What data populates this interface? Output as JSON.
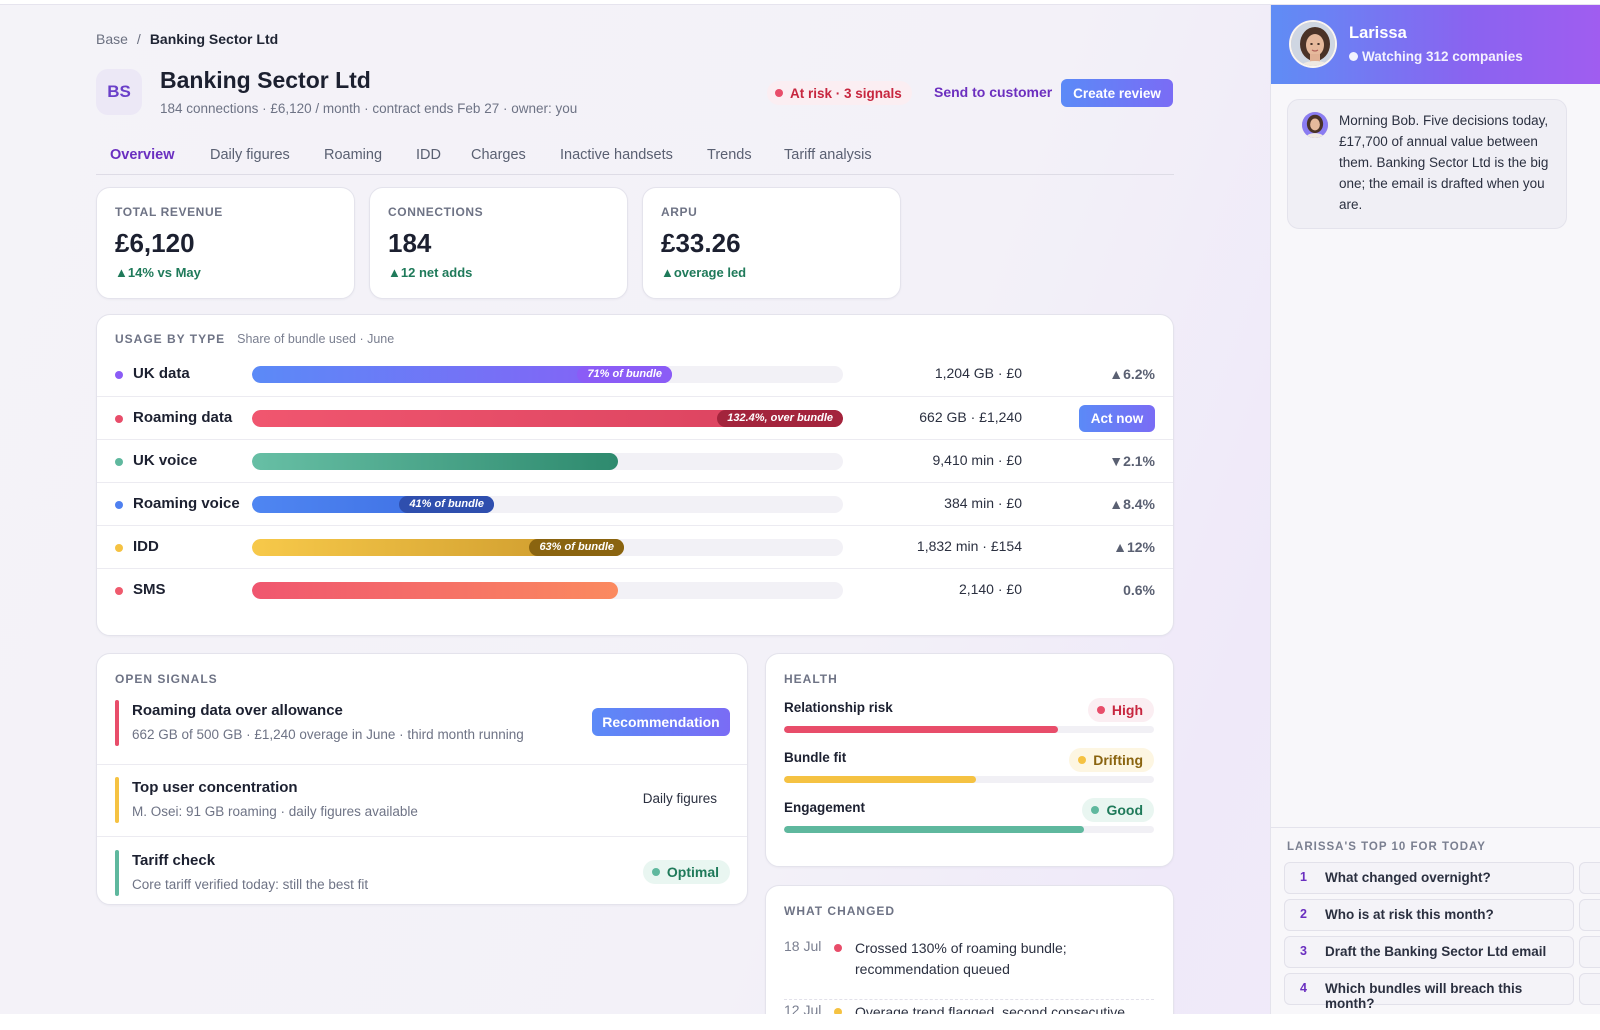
{
  "breadcrumb": {
    "root": "Base",
    "separator": "/",
    "current": "Banking Sector Ltd"
  },
  "company": {
    "initials": "BS",
    "name": "Banking Sector Ltd",
    "subtitle": "184 connections · £6,120 / month · contract ends Feb 27 · owner: you",
    "risk_label": "At risk · 3 signals",
    "send_label": "Send to customer",
    "create_label": "Create review"
  },
  "tabs": [
    "Overview",
    "Daily figures",
    "Roaming",
    "IDD",
    "Charges",
    "Inactive handsets",
    "Trends",
    "Tariff analysis"
  ],
  "active_tab": "Overview",
  "stats": [
    {
      "label": "TOTAL REVENUE",
      "value": "£6,120",
      "delta": "▲14% vs May"
    },
    {
      "label": "CONNECTIONS",
      "value": "184",
      "delta": "▲12 net adds"
    },
    {
      "label": "ARPU",
      "value": "£33.26",
      "delta": "▲overage led"
    }
  ],
  "usage": {
    "title": "USAGE BY TYPE",
    "subtitle": "Share of bundle used · June",
    "rows": [
      {
        "name": "UK data",
        "dot": "#8b5cf6",
        "fill": 0.71,
        "tag": "71% of bundle",
        "amount": "1,204 GB · £0",
        "delta": "▲6.2%",
        "gradient": [
          "#5b8af7",
          "#8b5cf6"
        ],
        "tag_color": "#8b5cf6"
      },
      {
        "name": "Roaming data",
        "dot": "#e84d6a",
        "fill": 1.0,
        "tag": "132.4%, over bundle",
        "amount": "662 GB · £1,240",
        "action": "Act now",
        "gradient": [
          "#f0566f",
          "#d9415e"
        ],
        "tag_color": "#a3243c"
      },
      {
        "name": "UK voice",
        "dot": "#5fb89e",
        "fill": 0.62,
        "amount": "9,410 min · £0",
        "delta": "▼2.1%",
        "gradient": [
          "#67bfa5",
          "#2e8a6e"
        ]
      },
      {
        "name": "Roaming voice",
        "dot": "#4f80f0",
        "fill": 0.41,
        "tag": "41% of bundle",
        "amount": "384 min · £0",
        "delta": "▲8.4%",
        "gradient": [
          "#4f86f2",
          "#3b6be0"
        ],
        "tag_color": "#2f4fae"
      },
      {
        "name": "IDD",
        "dot": "#f5c242",
        "fill": 0.63,
        "tag": "63% of bundle",
        "amount": "1,832 min · £154",
        "delta": "▲12%",
        "gradient": [
          "#f7c94a",
          "#c9962a"
        ],
        "tag_color": "#8a6410"
      },
      {
        "name": "SMS",
        "dot": "#ef5a6d",
        "fill": 0.62,
        "amount": "2,140 · £0",
        "delta": "0.6%",
        "gradient": [
          "#f0566f",
          "#fb8a5f"
        ]
      }
    ]
  },
  "signals": {
    "title": "OPEN SIGNALS",
    "items": [
      {
        "title": "Roaming data over allowance",
        "desc": "662 GB of 500 GB · £1,240 overage in June · third month running",
        "bar": "#e84d6a",
        "action": "Recommendation"
      },
      {
        "title": "Top user concentration",
        "desc": "M. Osei: 91 GB roaming · daily figures available",
        "bar": "#f5c242",
        "action": "Daily figures"
      },
      {
        "title": "Tariff check",
        "desc": "Core tariff verified today: still the best fit",
        "bar": "#5fb89e",
        "status": "Optimal"
      }
    ]
  },
  "health": {
    "title": "HEALTH",
    "items": [
      {
        "name": "Relationship risk",
        "status": "High",
        "fill": 0.74,
        "color": "#e84d6a",
        "pill_bg": "#fbeef2",
        "pill_fg": "#c7263f"
      },
      {
        "name": "Bundle fit",
        "status": "Drifting",
        "fill": 0.52,
        "color": "#f5c242",
        "pill_bg": "#fdf6e2",
        "pill_fg": "#8a6410"
      },
      {
        "name": "Engagement",
        "status": "Good",
        "fill": 0.81,
        "color": "#5fb89e",
        "pill_bg": "#e9f6f1",
        "pill_fg": "#1f7a5a"
      }
    ]
  },
  "what_changed": {
    "title": "WHAT CHANGED",
    "items": [
      {
        "date": "18 Jul",
        "dot": "#e84d6a",
        "text": "Crossed 130% of roaming bundle; recommendation queued"
      },
      {
        "date": "12 Jul",
        "dot": "#f5c242",
        "text": "Overage trend flagged, second consecutive"
      }
    ]
  },
  "assistant": {
    "name": "Larissa",
    "status": "Watching 312 companies",
    "message": "Morning Bob. Five decisions today, £17,700 of annual value between them. Banking Sector Ltd is the big one; the email is drafted when you are.",
    "top10_title": "LARISSA'S TOP 10 FOR TODAY",
    "questions": [
      {
        "num": "1",
        "text": "What changed overnight?"
      },
      {
        "num": "2",
        "text": "Who is at risk this month?"
      },
      {
        "num": "3",
        "text": "Draft the Banking Sector Ltd email"
      },
      {
        "num": "4",
        "text": "Which bundles will breach this month?"
      }
    ]
  }
}
